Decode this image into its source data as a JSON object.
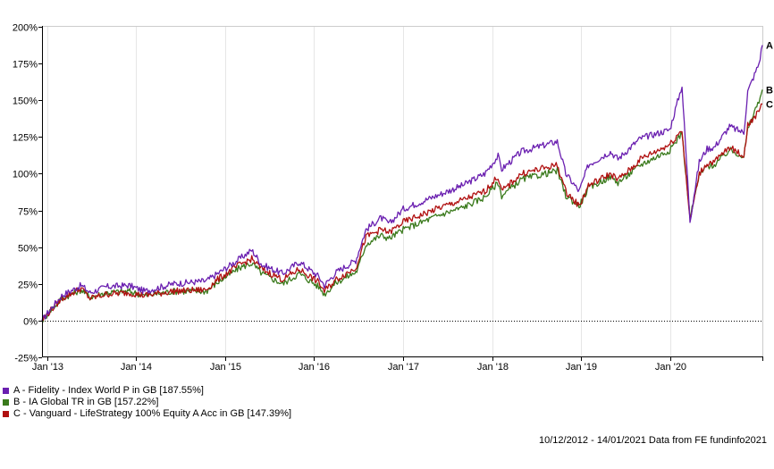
{
  "chart_data": {
    "type": "line",
    "title": "",
    "xlabel": "",
    "ylabel": "",
    "ylim": [
      -25,
      200
    ],
    "y_ticks": [
      "200%",
      "175%",
      "150%",
      "125%",
      "100%",
      "75%",
      "50%",
      "25%",
      "0%",
      "-25%"
    ],
    "y_tick_values": [
      200,
      175,
      150,
      125,
      100,
      75,
      50,
      25,
      0,
      -25
    ],
    "x_ticks": [
      "Jan '13",
      "Jan '14",
      "Jan '15",
      "Jan '16",
      "Jan '17",
      "Jan '18",
      "Jan '19",
      "Jan '20"
    ],
    "x_tick_dates": [
      "2013-01-01",
      "2014-01-01",
      "2015-01-01",
      "2016-01-01",
      "2017-01-01",
      "2018-01-01",
      "2019-01-01",
      "2020-01-01"
    ],
    "x_range": [
      "2012-12-10",
      "2021-01-14"
    ],
    "grid": "vertical",
    "zero_line": "dotted",
    "legend_position": "bottom-left",
    "series": [
      {
        "name": "A - Fidelity - Index World P in GB [187.55%]",
        "end_label": "A",
        "color": "#6a1fb0",
        "x": [
          "2012-12-10",
          "2013-01-15",
          "2013-03-01",
          "2013-05-20",
          "2013-06-25",
          "2013-09-01",
          "2013-12-01",
          "2014-02-05",
          "2014-06-01",
          "2014-10-15",
          "2014-12-01",
          "2015-03-01",
          "2015-04-20",
          "2015-06-01",
          "2015-08-25",
          "2015-11-01",
          "2016-01-20",
          "2016-02-12",
          "2016-04-01",
          "2016-06-20",
          "2016-06-28",
          "2016-08-01",
          "2016-10-01",
          "2016-11-05",
          "2017-01-01",
          "2017-06-01",
          "2017-09-01",
          "2017-12-01",
          "2018-01-25",
          "2018-02-09",
          "2018-05-01",
          "2018-09-25",
          "2018-10-30",
          "2018-12-24",
          "2019-01-31",
          "2019-05-01",
          "2019-06-01",
          "2019-08-05",
          "2019-09-01",
          "2019-12-31",
          "2020-02-19",
          "2020-03-23",
          "2020-04-30",
          "2020-06-01",
          "2020-07-01",
          "2020-09-01",
          "2020-10-30",
          "2020-11-15",
          "2020-12-31",
          "2021-01-14"
        ],
        "values": [
          0,
          8,
          17,
          24,
          19,
          23,
          24,
          20,
          25,
          27,
          32,
          42,
          48,
          38,
          32,
          40,
          30,
          24,
          33,
          41,
          45,
          62,
          70,
          66,
          76,
          86,
          92,
          100,
          112,
          103,
          115,
          122,
          100,
          88,
          106,
          115,
          110,
          120,
          124,
          130,
          160,
          68,
          108,
          117,
          118,
          132,
          128,
          156,
          175,
          187.55
        ]
      },
      {
        "name": "B - IA Global TR in GB [157.22%]",
        "end_label": "B",
        "color": "#3a7a1c",
        "x": [
          "2012-12-10",
          "2013-01-15",
          "2013-03-01",
          "2013-05-20",
          "2013-06-25",
          "2013-09-01",
          "2013-12-01",
          "2014-02-05",
          "2014-06-01",
          "2014-10-15",
          "2014-12-01",
          "2015-03-01",
          "2015-04-20",
          "2015-06-01",
          "2015-08-25",
          "2015-11-01",
          "2016-01-20",
          "2016-02-12",
          "2016-04-01",
          "2016-06-20",
          "2016-06-28",
          "2016-08-01",
          "2016-10-01",
          "2016-11-05",
          "2017-01-01",
          "2017-06-01",
          "2017-09-01",
          "2017-12-01",
          "2018-01-25",
          "2018-02-09",
          "2018-05-01",
          "2018-09-25",
          "2018-10-30",
          "2018-12-24",
          "2019-01-31",
          "2019-05-01",
          "2019-06-01",
          "2019-08-05",
          "2019-09-01",
          "2019-12-31",
          "2020-02-19",
          "2020-03-23",
          "2020-04-30",
          "2020-06-01",
          "2020-07-01",
          "2020-09-01",
          "2020-10-30",
          "2020-11-15",
          "2020-12-31",
          "2021-01-14"
        ],
        "values": [
          0,
          7,
          15,
          21,
          16,
          19,
          20,
          17,
          20,
          20,
          26,
          36,
          39,
          32,
          25,
          32,
          23,
          18,
          26,
          33,
          35,
          52,
          58,
          56,
          62,
          72,
          77,
          84,
          94,
          85,
          96,
          102,
          85,
          78,
          90,
          98,
          94,
          102,
          106,
          116,
          128,
          70,
          99,
          105,
          106,
          116,
          112,
          130,
          150,
          157.22
        ]
      },
      {
        "name": "C - Vanguard - LifeStrategy 100% Equity A Acc in GB [147.39%]",
        "end_label": "C",
        "color": "#b01010",
        "x": [
          "2012-12-10",
          "2013-01-15",
          "2013-03-01",
          "2013-05-20",
          "2013-06-25",
          "2013-09-01",
          "2013-12-01",
          "2014-02-05",
          "2014-06-01",
          "2014-10-15",
          "2014-12-01",
          "2015-03-01",
          "2015-04-20",
          "2015-06-01",
          "2015-08-25",
          "2015-11-01",
          "2016-01-20",
          "2016-02-12",
          "2016-04-01",
          "2016-06-20",
          "2016-06-28",
          "2016-08-01",
          "2016-10-01",
          "2016-11-05",
          "2017-01-01",
          "2017-06-01",
          "2017-09-01",
          "2017-12-01",
          "2018-01-25",
          "2018-02-09",
          "2018-05-01",
          "2018-09-25",
          "2018-10-30",
          "2018-12-24",
          "2019-01-31",
          "2019-05-01",
          "2019-06-01",
          "2019-08-05",
          "2019-09-01",
          "2019-12-31",
          "2020-02-19",
          "2020-03-23",
          "2020-04-30",
          "2020-06-01",
          "2020-07-01",
          "2020-09-01",
          "2020-10-30",
          "2020-11-15",
          "2020-12-31",
          "2021-01-14"
        ],
        "values": [
          0,
          7,
          15,
          22,
          15,
          18,
          19,
          17,
          20,
          21,
          28,
          38,
          42,
          35,
          28,
          35,
          26,
          20,
          28,
          36,
          40,
          57,
          62,
          60,
          67,
          77,
          82,
          88,
          98,
          88,
          100,
          106,
          88,
          78,
          92,
          100,
          96,
          105,
          110,
          120,
          130,
          68,
          100,
          107,
          108,
          118,
          112,
          133,
          142,
          147.39
        ]
      }
    ],
    "footer": "10/12/2012 - 14/01/2021 Data from FE fundinfo2021"
  }
}
